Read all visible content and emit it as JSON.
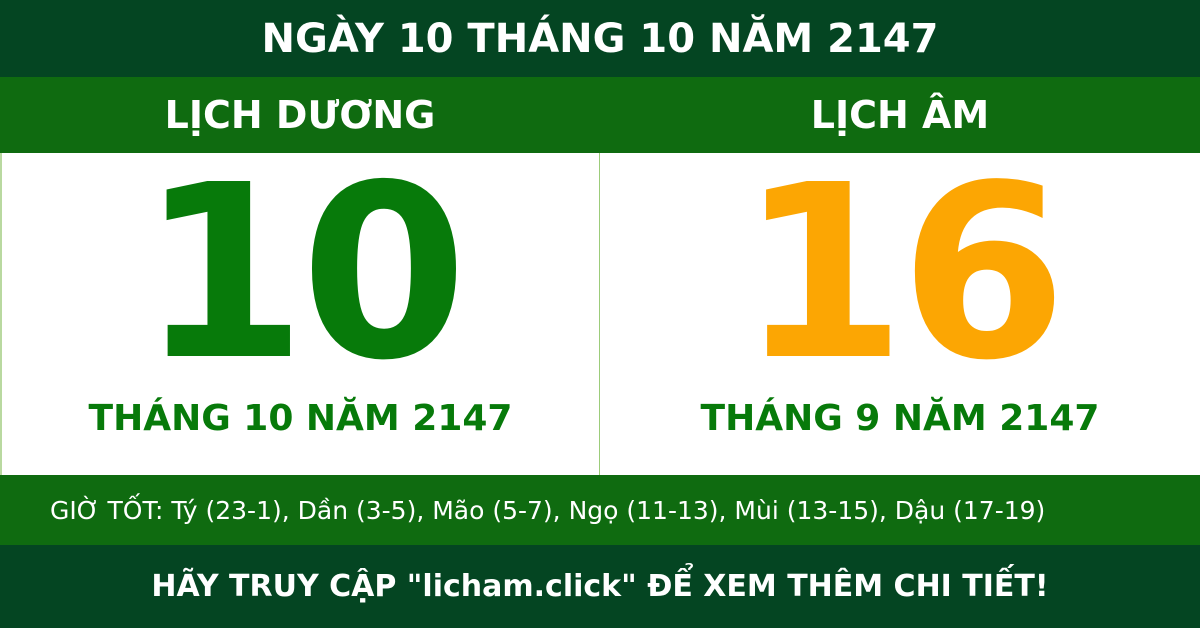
{
  "header": {
    "title": "NGÀY 10 THÁNG 10 NĂM 2147"
  },
  "solar": {
    "label": "LỊCH DƯƠNG",
    "day": "10",
    "month_year": "THÁNG 10 NĂM 2147"
  },
  "lunar": {
    "label": "LỊCH ÂM",
    "day": "16",
    "month_year": "THÁNG 9 NĂM 2147"
  },
  "good_hours": "GIỜ TỐT: Tý (23-1), Dần (3-5), Mão (5-7), Ngọ (11-13), Mùi (13-15), Dậu (17-19)",
  "footer": {
    "cta": "HÃY TRUY CẬP \"licham.click\" ĐỂ XEM THÊM CHI TIẾT!"
  },
  "colors": {
    "dark_green": "#044522",
    "green": "#0f6b10",
    "solar_day": "#077a0a",
    "lunar_day": "#fca603"
  }
}
